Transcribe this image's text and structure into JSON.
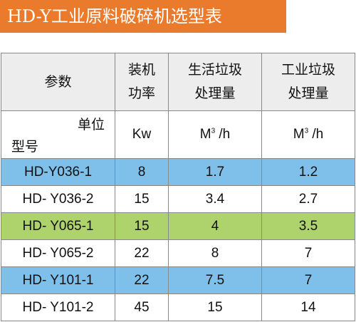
{
  "title": "HD-Y工业原料破碎机选型表",
  "colors": {
    "banner": "#ea7a2c",
    "blue_row": "#7fc0ea",
    "green_row": "#aed36c",
    "header_bg": "#ededed"
  },
  "header": {
    "param": "参数",
    "power_line1": "装机",
    "power_line2": "功率",
    "domestic_line1": "生活垃圾",
    "domestic_line2": "处理量",
    "industrial_line1": "工业垃圾",
    "industrial_line2": "处理量"
  },
  "subheader": {
    "unit_label": "单位",
    "model_label": "型号",
    "power_unit": "Kw",
    "capacity_unit_base": "M",
    "capacity_unit_sup": "3",
    "capacity_unit_rest": " /h"
  },
  "rows": [
    {
      "model": "HD-Y036-1",
      "power": "8",
      "domestic": "1.7",
      "industrial": "1.2",
      "highlight": "blue"
    },
    {
      "model": "HD- Y036-2",
      "power": "15",
      "domestic": "3.4",
      "industrial": "2.7",
      "highlight": "none"
    },
    {
      "model": "HD- Y065-1",
      "power": "15",
      "domestic": "4",
      "industrial": "3.5",
      "highlight": "green"
    },
    {
      "model": "HD- Y065-2",
      "power": "22",
      "domestic": "8",
      "industrial": "7",
      "highlight": "none"
    },
    {
      "model": "HD- Y101-1",
      "power": "22",
      "domestic": "7.5",
      "industrial": "7",
      "highlight": "blue"
    },
    {
      "model": "HD- Y101-2",
      "power": "45",
      "domestic": "15",
      "industrial": "14",
      "highlight": "none"
    }
  ]
}
